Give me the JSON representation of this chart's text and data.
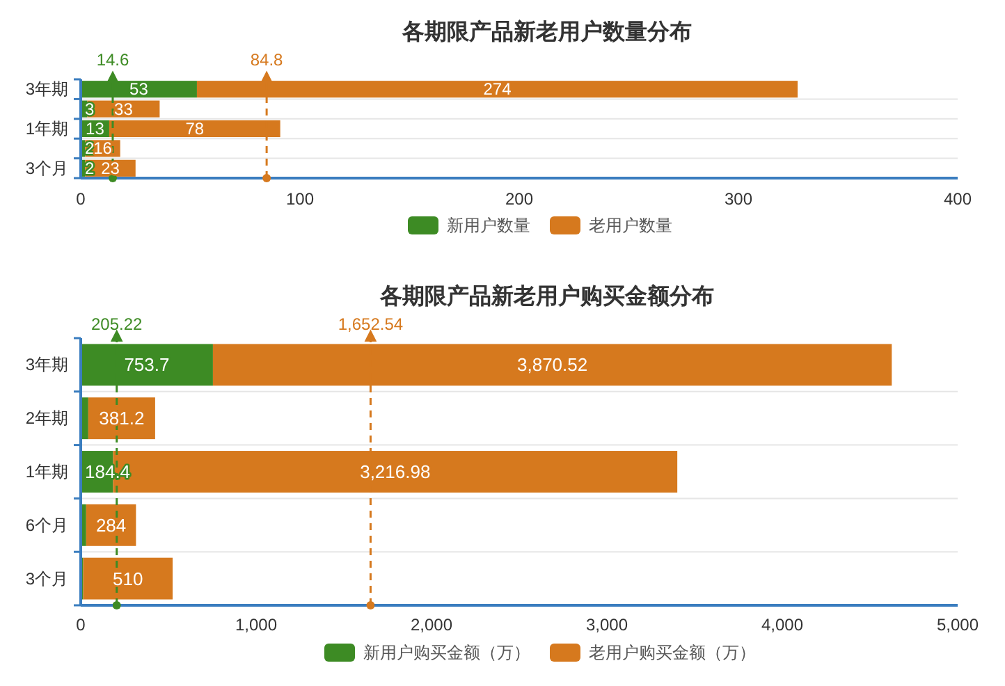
{
  "chart_data": [
    {
      "type": "bar",
      "title": "各期限产品新老用户数量分布",
      "orientation": "horizontal",
      "stacked": true,
      "categories": [
        "3年期",
        null,
        "1年期",
        null,
        "3个月"
      ],
      "series": [
        {
          "name": "新用户数量",
          "color": "#3d8b24",
          "values": [
            53,
            3,
            13,
            2,
            2
          ]
        },
        {
          "name": "老用户数量",
          "color": "#d6791e",
          "values": [
            274,
            33,
            78,
            16,
            23
          ]
        }
      ],
      "xlim": [
        0,
        400
      ],
      "xticks": [
        0,
        100,
        200,
        300,
        400
      ],
      "grid": "y",
      "legend": "bottom",
      "data_labels": true,
      "ref_lines": [
        {
          "axis": "x",
          "value": 14.6,
          "label": "14.6",
          "color": "#3d8b24",
          "line_style": "dashed"
        },
        {
          "axis": "x",
          "value": 84.8,
          "label": "84.8",
          "color": "#d6791e",
          "line_style": "dashed"
        }
      ]
    },
    {
      "type": "bar",
      "title": "各期限产品新老用户购买金额分布",
      "orientation": "horizontal",
      "stacked": true,
      "categories": [
        "3年期",
        "2年期",
        "1年期",
        "6个月",
        "3个月"
      ],
      "series": [
        {
          "name": "新用户购买金额（万）",
          "color": "#3d8b24",
          "values": [
            753.7,
            43,
            184.4,
            31,
            14
          ],
          "value_labels": [
            "753.7",
            null,
            "184.4",
            null,
            null
          ]
        },
        {
          "name": "老用户购买金额（万）",
          "color": "#d6791e",
          "values": [
            3870.52,
            381.2,
            3216.98,
            284,
            510
          ],
          "value_labels": [
            "3,870.52",
            "381.2",
            "3,216.98",
            "284",
            "510"
          ]
        }
      ],
      "xlim": [
        0,
        5000
      ],
      "xticks": [
        0,
        {
          "value": 1000,
          "label": "1,000"
        },
        {
          "value": 2000,
          "label": "2,000"
        },
        {
          "value": 3000,
          "label": "3,000"
        },
        {
          "value": 4000,
          "label": "4,000"
        },
        {
          "value": 5000,
          "label": "5,000"
        }
      ],
      "grid": "y",
      "legend": "bottom",
      "ref_lines": [
        {
          "axis": "x",
          "value": 205.22,
          "label": "205.22",
          "color": "#3d8b24",
          "line_style": "dashed"
        },
        {
          "axis": "x",
          "value": 1652.54,
          "label": "1,652.54",
          "color": "#d6791e",
          "line_style": "dashed"
        }
      ]
    }
  ]
}
